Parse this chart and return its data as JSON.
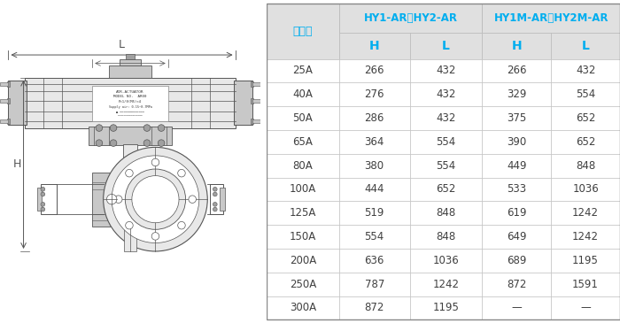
{
  "header_group1": "HY1-AR，HY2-AR",
  "header_group2": "HY1M-AR，HY2M-AR",
  "col_size": "サイズ",
  "rows": [
    {
      "size": "25A",
      "h1": "266",
      "l1": "432",
      "h2": "266",
      "l2": "432"
    },
    {
      "size": "40A",
      "h1": "276",
      "l1": "432",
      "h2": "329",
      "l2": "554"
    },
    {
      "size": "50A",
      "h1": "286",
      "l1": "432",
      "h2": "375",
      "l2": "652"
    },
    {
      "size": "65A",
      "h1": "364",
      "l1": "554",
      "h2": "390",
      "l2": "652"
    },
    {
      "size": "80A",
      "h1": "380",
      "l1": "554",
      "h2": "449",
      "l2": "848"
    },
    {
      "size": "100A",
      "h1": "444",
      "l1": "652",
      "h2": "533",
      "l2": "1036"
    },
    {
      "size": "125A",
      "h1": "519",
      "l1": "848",
      "h2": "619",
      "l2": "1242"
    },
    {
      "size": "150A",
      "h1": "554",
      "l1": "848",
      "h2": "649",
      "l2": "1242"
    },
    {
      "size": "200A",
      "h1": "636",
      "l1": "1036",
      "h2": "689",
      "l2": "1195"
    },
    {
      "size": "250A",
      "h1": "787",
      "l1": "1242",
      "h2": "872",
      "l2": "1591"
    },
    {
      "size": "300A",
      "h1": "872",
      "l1": "1195",
      "h2": "—",
      "l2": "—"
    }
  ],
  "cyan_color": "#00AEEF",
  "header_bg": "#E0E0E0",
  "border_color": "#BBBBBB",
  "white_bg": "#FFFFFF",
  "text_color": "#404040",
  "diag_line": "#555555",
  "diag_fill_light": "#E8E8E8",
  "diag_fill_mid": "#C8C8C8",
  "diag_fill_dark": "#A0A0A0"
}
